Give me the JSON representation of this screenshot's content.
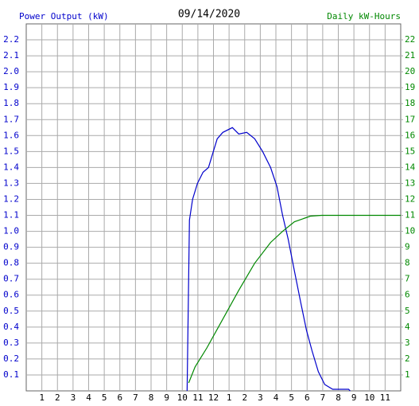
{
  "chart_data": {
    "type": "line",
    "title": "09/14/2020",
    "y_label": "Power Output (kW)",
    "y2_label": "Daily kW-Hours",
    "grid": true,
    "xlim": [
      0,
      24
    ],
    "xticks": [
      1,
      2,
      3,
      4,
      5,
      6,
      7,
      8,
      9,
      10,
      11,
      12,
      {
        "value": 13,
        "label": "1"
      },
      {
        "value": 14,
        "label": "2"
      },
      {
        "value": 15,
        "label": "3"
      },
      {
        "value": 16,
        "label": "4"
      },
      {
        "value": 17,
        "label": "5"
      },
      {
        "value": 18,
        "label": "6"
      },
      {
        "value": 19,
        "label": "7"
      },
      {
        "value": 20,
        "label": "8"
      },
      {
        "value": 21,
        "label": "9"
      },
      {
        "value": 22,
        "label": "10"
      },
      {
        "value": 23,
        "label": "11"
      }
    ],
    "ylim": [
      0,
      2.3
    ],
    "yticks": [
      0.1,
      0.2,
      0.3,
      0.4,
      0.5,
      0.6,
      0.7,
      0.8,
      0.9,
      {
        "value": 1,
        "label": "1.0"
      },
      1.1,
      1.2,
      1.3,
      1.4,
      1.5,
      1.6,
      1.7,
      1.8,
      1.9,
      {
        "value": 2,
        "label": "2.0"
      },
      2.1,
      2.2
    ],
    "y2lim": [
      0,
      23
    ],
    "y2ticks": [
      1,
      2,
      3,
      4,
      5,
      6,
      7,
      8,
      9,
      10,
      11,
      12,
      13,
      14,
      15,
      16,
      17,
      18,
      19,
      20,
      21,
      22
    ],
    "series": [
      {
        "name": "Power Output",
        "color": "#0000cc",
        "axis": "y",
        "x": [
          10.31,
          10.46,
          10.66,
          10.97,
          11.33,
          11.68,
          11.99,
          12.24,
          12.6,
          13.21,
          13.62,
          14.13,
          14.64,
          15.15,
          15.66,
          16.07,
          16.43,
          16.79,
          17.19,
          17.6,
          17.96,
          18.32,
          18.72,
          19.13,
          19.64,
          20.66,
          20.76
        ],
        "values": [
          0,
          1.07,
          1.2,
          1.3,
          1.37,
          1.4,
          1.5,
          1.58,
          1.62,
          1.65,
          1.61,
          1.62,
          1.58,
          1.5,
          1.4,
          1.28,
          1.1,
          0.95,
          0.75,
          0.55,
          0.38,
          0.25,
          0.12,
          0.04,
          0.01,
          0.01,
          0
        ]
      },
      {
        "name": "Daily kW-Hours",
        "color": "#008800",
        "axis": "y2",
        "x": [
          10.41,
          10.82,
          11.58,
          12.6,
          13.62,
          14.64,
          15.66,
          16.43,
          17.19,
          18.21,
          18.93,
          24
        ],
        "values": [
          0.5,
          1.5,
          2.7,
          4.5,
          6.3,
          8.0,
          9.3,
          10.0,
          10.6,
          10.95,
          11.0,
          11.0
        ]
      }
    ]
  }
}
